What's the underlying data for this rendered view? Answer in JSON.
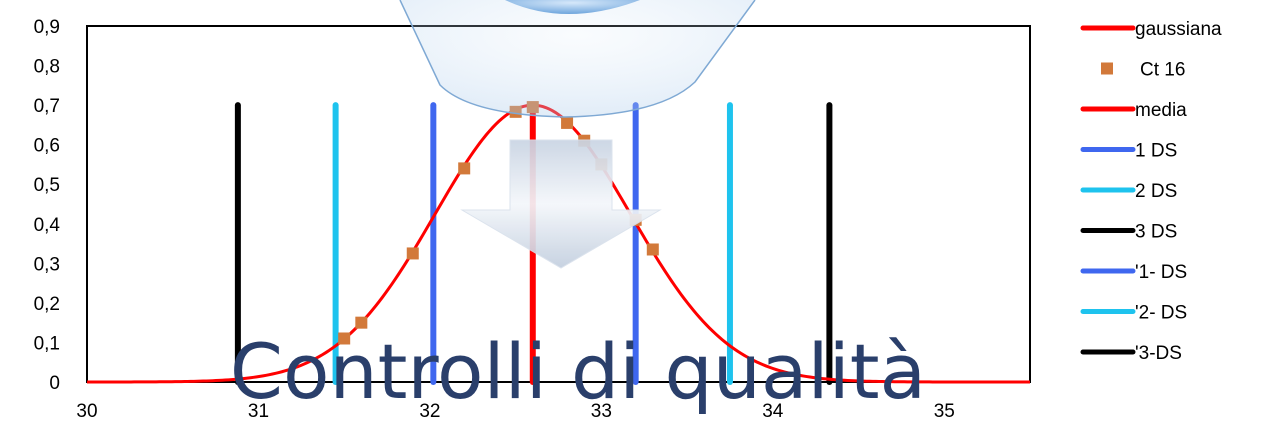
{
  "chart_data": {
    "type": "line",
    "xlim": [
      30,
      35.5
    ],
    "ylim": [
      0,
      0.9
    ],
    "x_ticks": [
      "30",
      "31",
      "32",
      "33",
      "34",
      "35"
    ],
    "y_ticks": [
      "0",
      "0,1",
      "0,2",
      "0,3",
      "0,4",
      "0,5",
      "0,6",
      "0,7",
      "0,8",
      "0,9"
    ],
    "grid": false,
    "legend_position": "right",
    "gaussian": {
      "name": "gaussiana",
      "mean": 32.6,
      "sd": 0.57,
      "color": "#ff0000"
    },
    "points": {
      "name": "Ct 16",
      "color": "#d2793a",
      "x": [
        31.5,
        31.6,
        31.9,
        32.2,
        32.5,
        32.6,
        32.8,
        32.9,
        33.0,
        33.2,
        33.3
      ],
      "y": [
        0.11,
        0.15,
        0.325,
        0.54,
        0.683,
        0.695,
        0.655,
        0.61,
        0.55,
        0.41,
        0.335
      ]
    },
    "vertical_lines": [
      {
        "name": "media",
        "x": 32.6,
        "y": [
          0,
          0.7
        ],
        "color": "#ff0000"
      },
      {
        "name": "1 DS",
        "x": 33.2,
        "y": [
          0,
          0.7
        ],
        "color": "#3f67ef"
      },
      {
        "name": "2 DS",
        "x": 33.75,
        "y": [
          0,
          0.7
        ],
        "color": "#1ec3ee"
      },
      {
        "name": "3 DS",
        "x": 34.33,
        "y": [
          0,
          0.7
        ],
        "color": "#000000"
      },
      {
        "name": "'1- DS",
        "x": 32.02,
        "y": [
          0,
          0.7
        ],
        "color": "#3f67ef"
      },
      {
        "name": "'2- DS",
        "x": 31.45,
        "y": [
          0,
          0.7
        ],
        "color": "#1ec3ee"
      },
      {
        "name": "'3-DS",
        "x": 30.88,
        "y": [
          0,
          0.7
        ],
        "color": "#000000"
      }
    ],
    "legend": [
      {
        "label": "gaussiana",
        "color": "#ff0000",
        "symbol": "line"
      },
      {
        "label": "Ct 16",
        "color": "#d2793a",
        "symbol": "square"
      },
      {
        "label": "media",
        "color": "#ff0000",
        "symbol": "line"
      },
      {
        "label": "1 DS",
        "color": "#3f67ef",
        "symbol": "line"
      },
      {
        "label": "2 DS",
        "color": "#1ec3ee",
        "symbol": "line"
      },
      {
        "label": "3 DS",
        "color": "#000000",
        "symbol": "line"
      },
      {
        "label": "'1- DS",
        "color": "#3f67ef",
        "symbol": "line"
      },
      {
        "label": "'2- DS",
        "color": "#1ec3ee",
        "symbol": "line"
      },
      {
        "label": "'3-DS",
        "color": "#000000",
        "symbol": "line"
      }
    ]
  },
  "overlay": {
    "title": "Controlli di qualità",
    "title_color": "#2a3f6b",
    "decorations": [
      "lens-shape",
      "down-arrow-icon"
    ]
  }
}
